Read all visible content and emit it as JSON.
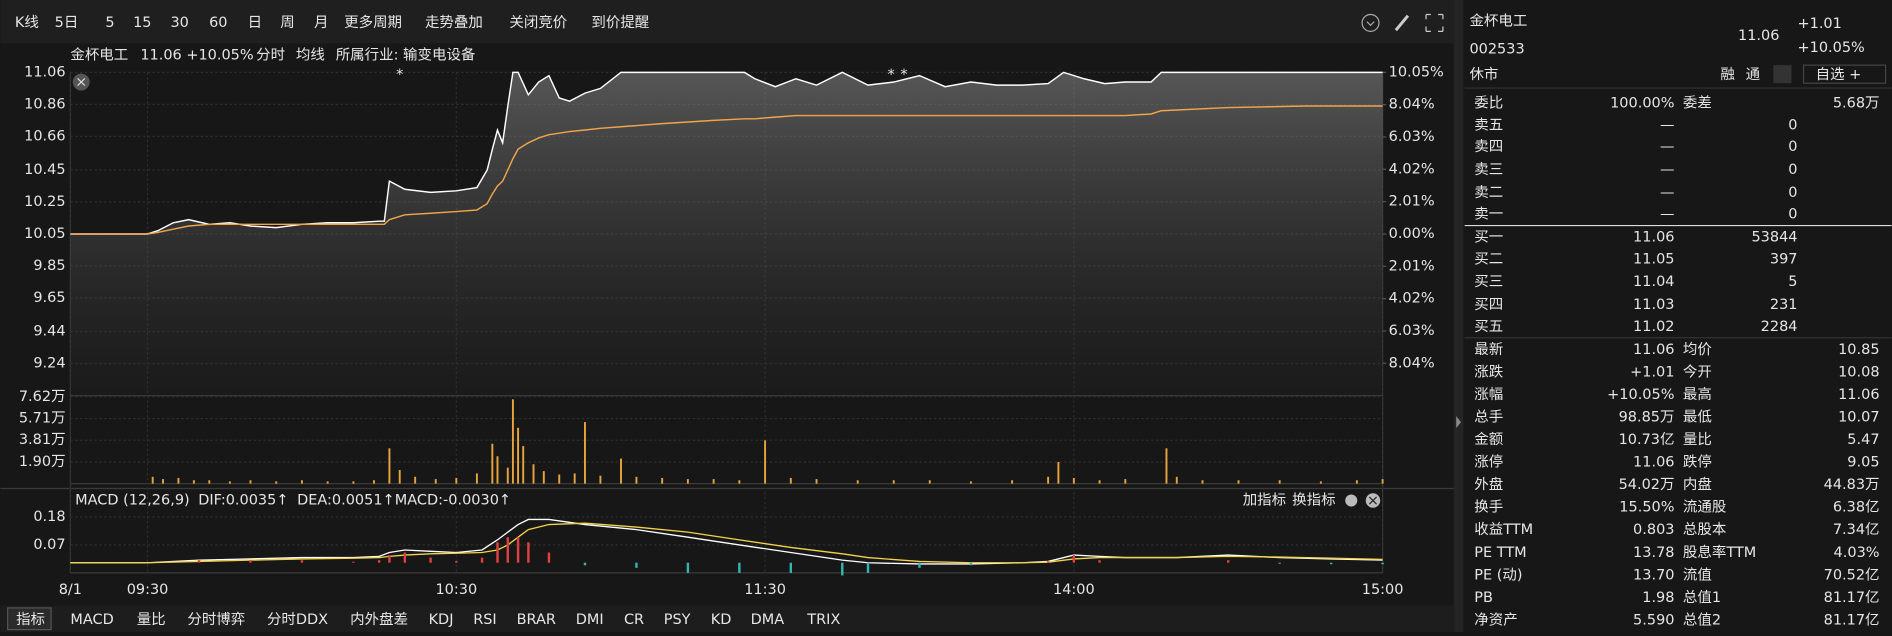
{
  "toolbar": {
    "items": [
      "K线",
      "5日",
      "5",
      "15",
      "30",
      "60",
      "日",
      "周",
      "月",
      "更多周期",
      "走势叠加",
      "关闭竞价",
      "到价提醒"
    ]
  },
  "chart_header": {
    "name": "金杯电工",
    "quote": "11.06 +10.05%",
    "industry": "所属行业: 输变电设备"
  },
  "chart_data": [
    {
      "type": "line",
      "xlim": [
        -15,
        240
      ],
      "xticks": [
        {
          "value": -15,
          "label": "8/1"
        },
        {
          "value": 0,
          "label": "09:30"
        },
        {
          "value": 60,
          "label": "10:30"
        },
        {
          "value": 120,
          "label": "11:30"
        },
        {
          "value": 180,
          "label": "14:00"
        },
        {
          "value": 240,
          "label": "15:00"
        }
      ],
      "ylim": [
        9.04,
        11.06
      ],
      "yticks": [
        11.06,
        10.86,
        10.66,
        10.45,
        10.25,
        10.05,
        9.85,
        9.65,
        9.44,
        9.24
      ],
      "y2lim": [
        -10.05,
        10.05
      ],
      "y2ticks": [
        {
          "value": 10.05,
          "label": "10.05%"
        },
        {
          "value": 8.04,
          "label": "8.04%"
        },
        {
          "value": 6.03,
          "label": "6.03%"
        },
        {
          "value": 4.02,
          "label": "4.02%"
        },
        {
          "value": 2.01,
          "label": "2.01%"
        },
        {
          "value": 0,
          "label": "0.00%"
        },
        {
          "value": -2.01,
          "label": "2.01%"
        },
        {
          "value": -4.02,
          "label": "4.02%"
        },
        {
          "value": -6.03,
          "label": "6.03%"
        },
        {
          "value": -8.04,
          "label": "8.04%"
        }
      ],
      "grid": true,
      "x": [
        -15,
        0,
        2,
        5,
        8,
        12,
        16,
        20,
        25,
        30,
        35,
        40,
        45,
        46,
        47,
        50,
        55,
        60,
        64,
        66,
        67,
        68,
        69,
        70,
        71,
        72,
        74,
        76,
        78,
        80,
        82,
        85,
        88,
        92,
        100,
        110,
        116,
        118,
        122,
        126,
        130,
        135,
        140,
        145,
        150,
        155,
        160,
        165,
        170,
        175,
        178,
        182,
        186,
        190,
        195,
        197,
        210,
        225,
        240
      ],
      "series": [
        {
          "name": "分时",
          "color": "#ffffff",
          "values": [
            10.05,
            10.05,
            10.07,
            10.12,
            10.14,
            10.11,
            10.12,
            10.1,
            10.09,
            10.11,
            10.12,
            10.12,
            10.13,
            10.13,
            10.38,
            10.33,
            10.31,
            10.32,
            10.34,
            10.45,
            10.58,
            10.7,
            10.62,
            10.85,
            11.06,
            11.06,
            10.92,
            11.0,
            11.04,
            10.9,
            10.88,
            10.93,
            10.96,
            11.06,
            11.06,
            11.06,
            11.06,
            11.02,
            10.97,
            11.02,
            10.98,
            11.06,
            10.98,
            11.0,
            11.04,
            10.97,
            11.0,
            10.98,
            10.98,
            10.99,
            11.06,
            11.02,
            10.99,
            11.0,
            11.0,
            11.06,
            11.06,
            11.06,
            11.06
          ]
        },
        {
          "name": "均线",
          "color": "#f0a54a",
          "values": [
            10.05,
            10.05,
            10.06,
            10.08,
            10.1,
            10.11,
            10.11,
            10.11,
            10.11,
            10.11,
            10.11,
            10.11,
            10.11,
            10.11,
            10.14,
            10.17,
            10.18,
            10.19,
            10.2,
            10.24,
            10.3,
            10.35,
            10.38,
            10.45,
            10.52,
            10.58,
            10.62,
            10.65,
            10.67,
            10.68,
            10.69,
            10.7,
            10.71,
            10.72,
            10.74,
            10.76,
            10.77,
            10.77,
            10.78,
            10.79,
            10.79,
            10.79,
            10.79,
            10.79,
            10.79,
            10.79,
            10.79,
            10.79,
            10.79,
            10.79,
            10.79,
            10.79,
            10.79,
            10.79,
            10.8,
            10.82,
            10.84,
            10.85,
            10.85
          ]
        }
      ],
      "annotations": [
        {
          "x": 49,
          "label": "*"
        },
        {
          "x": 144.5,
          "label": "*"
        },
        {
          "x": 147,
          "label": "*"
        }
      ]
    },
    {
      "type": "bar",
      "xlim": [
        -15,
        240
      ],
      "ylim": [
        0,
        7.62
      ],
      "color": "#e8a33d",
      "yticks": [
        {
          "value": 7.62,
          "label": "7.62万"
        },
        {
          "value": 5.71,
          "label": "5.71万"
        },
        {
          "value": 3.81,
          "label": "3.81万"
        },
        {
          "value": 1.9,
          "label": "1.90万"
        }
      ],
      "x": [
        1,
        3,
        6,
        9,
        12,
        16,
        20,
        25,
        30,
        35,
        40,
        44,
        47,
        49,
        52,
        56,
        60,
        64,
        67,
        68,
        70,
        71,
        72,
        73,
        75,
        77,
        80,
        83,
        85,
        88,
        92,
        95,
        100,
        105,
        110,
        115,
        120,
        125,
        130,
        138,
        145,
        152,
        160,
        168,
        175,
        177,
        180,
        185,
        190,
        198,
        200,
        205,
        212,
        220,
        228,
        235,
        240
      ],
      "values": [
        0.6,
        0.4,
        0.5,
        0.3,
        0.3,
        0.2,
        0.3,
        0.2,
        0.3,
        0.2,
        0.2,
        0.3,
        3.1,
        1.2,
        0.6,
        0.4,
        0.5,
        0.9,
        3.5,
        2.4,
        1.4,
        7.4,
        4.9,
        3.3,
        1.7,
        1.1,
        0.8,
        0.9,
        5.4,
        0.7,
        2.2,
        0.6,
        0.5,
        0.4,
        0.4,
        0.3,
        3.8,
        0.5,
        0.4,
        0.3,
        0.3,
        0.3,
        0.2,
        0.3,
        0.6,
        1.9,
        0.5,
        0.3,
        0.4,
        3.1,
        0.6,
        0.3,
        0.3,
        0.3,
        0.2,
        0.3,
        0.4
      ]
    },
    {
      "type": "line",
      "xlim": [
        -15,
        240
      ],
      "ylim": [
        -0.04,
        0.23
      ],
      "yticks": [
        0.18,
        0.07
      ],
      "bar_colors": {
        "up": "#e0403f",
        "down": "#35b5b0"
      },
      "x": [
        -15,
        0,
        10,
        20,
        30,
        40,
        45,
        47,
        50,
        55,
        60,
        65,
        68,
        70,
        72,
        74,
        78,
        85,
        95,
        105,
        115,
        125,
        135,
        140,
        150,
        160,
        170,
        175,
        180,
        185,
        190,
        200,
        210,
        220,
        230,
        240
      ],
      "series": [
        {
          "name": "DIF:0.0035↑",
          "color": "#ffffff",
          "values": [
            0,
            0,
            0.01,
            0.015,
            0.02,
            0.02,
            0.025,
            0.04,
            0.05,
            0.045,
            0.04,
            0.05,
            0.09,
            0.12,
            0.15,
            0.17,
            0.17,
            0.15,
            0.13,
            0.1,
            0.07,
            0.04,
            0.01,
            0.0,
            -0.005,
            -0.005,
            0.0,
            0.005,
            0.03,
            0.025,
            0.02,
            0.02,
            0.03,
            0.02,
            0.015,
            0.01
          ]
        },
        {
          "name": "DEA:0.0051↑",
          "color": "#f3d34a",
          "values": [
            0,
            0,
            0.005,
            0.01,
            0.015,
            0.018,
            0.02,
            0.025,
            0.03,
            0.035,
            0.037,
            0.04,
            0.05,
            0.07,
            0.1,
            0.13,
            0.15,
            0.155,
            0.14,
            0.12,
            0.09,
            0.06,
            0.035,
            0.02,
            0.005,
            0.0,
            0.0,
            0.002,
            0.015,
            0.02,
            0.02,
            0.02,
            0.025,
            0.022,
            0.018,
            0.013
          ]
        },
        {
          "name": "MACD:-0.0030↑",
          "color": "#d65ee0",
          "type": "bar",
          "values": [
            0,
            0,
            0.01,
            0.01,
            0.01,
            0.004,
            0.01,
            0.03,
            0.04,
            0.02,
            0.006,
            0.02,
            0.08,
            0.1,
            0.1,
            0.08,
            0.04,
            -0.01,
            -0.02,
            -0.04,
            -0.04,
            -0.04,
            -0.05,
            -0.04,
            -0.02,
            -0.01,
            0,
            0.006,
            0.03,
            0.01,
            0,
            0,
            0.01,
            -0.004,
            -0.006,
            -0.006
          ]
        }
      ]
    }
  ],
  "indicator_header": {
    "title": "MACD (12,26,9)",
    "add": "加指标",
    "switch": "换指标"
  },
  "tabs": [
    "指标",
    "MACD",
    "量比",
    "分时博弈",
    "分时DDX",
    "内外盘差",
    "KDJ",
    "RSI",
    "BRAR",
    "DMI",
    "CR",
    "PSY",
    "KD",
    "DMA",
    "TRIX"
  ],
  "quote_panel": {
    "name": "金杯电工",
    "code": "002533",
    "status": "休市",
    "price": "11.06",
    "change": "+1.01",
    "change_pct": "+10.05%",
    "buttons": [
      "融",
      "通",
      "自选 +"
    ],
    "ratio": {
      "left": {
        "label": "委比",
        "value": "100.00%"
      },
      "right": {
        "label": "委差",
        "value": "5.68万"
      }
    },
    "asks": [
      {
        "label": "卖五",
        "price": "—",
        "volume": "0"
      },
      {
        "label": "卖四",
        "price": "—",
        "volume": "0"
      },
      {
        "label": "卖三",
        "price": "—",
        "volume": "0"
      },
      {
        "label": "卖二",
        "price": "—",
        "volume": "0"
      },
      {
        "label": "卖一",
        "price": "—",
        "volume": "0"
      }
    ],
    "bids": [
      {
        "label": "买一",
        "price": "11.06",
        "volume": "53844"
      },
      {
        "label": "买二",
        "price": "11.05",
        "volume": "397"
      },
      {
        "label": "买三",
        "price": "11.04",
        "volume": "5"
      },
      {
        "label": "买四",
        "price": "11.03",
        "volume": "231"
      },
      {
        "label": "买五",
        "price": "11.02",
        "volume": "2284"
      }
    ],
    "stats": [
      {
        "left": {
          "label": "最新",
          "value": "11.06",
          "color": "#ff3b3b"
        },
        "right": {
          "label": "均价",
          "value": "10.85",
          "color": "#ff3b3b"
        }
      },
      {
        "left": {
          "label": "涨跌",
          "value": "+1.01",
          "color": "#ff3b3b"
        },
        "right": {
          "label": "今开",
          "value": "10.08",
          "color": "#ff3b3b"
        }
      },
      {
        "left": {
          "label": "涨幅",
          "value": "+10.05%",
          "color": "#ff3b3b"
        },
        "right": {
          "label": "最高",
          "value": "11.06",
          "color": "#ff3b3b"
        }
      },
      {
        "left": {
          "label": "总手",
          "value": "98.85万",
          "color": "#e6e6e6"
        },
        "right": {
          "label": "最低",
          "value": "10.07",
          "color": "#ff3b3b"
        }
      },
      {
        "left": {
          "label": "金额",
          "value": "10.73亿",
          "color": "#35c8d8"
        },
        "right": {
          "label": "量比",
          "value": "5.47",
          "color": "#e6e6e6"
        }
      },
      {
        "left": {
          "label": "涨停",
          "value": "11.06",
          "color": "#ff3b3b"
        },
        "right": {
          "label": "跌停",
          "value": "9.05",
          "color": "#2fd05a"
        }
      },
      {
        "left": {
          "label": "外盘",
          "value": "54.02万",
          "color": "#ff3b3b"
        },
        "right": {
          "label": "内盘",
          "value": "44.83万",
          "color": "#2fd05a"
        }
      },
      {
        "left": {
          "label": "换手",
          "value": "15.50%",
          "color": "#e6e6e6"
        },
        "right": {
          "label": "流通股",
          "value": "6.38亿",
          "color": "#e6e6e6"
        }
      },
      {
        "left": {
          "label": "收益TTM",
          "value": "0.803",
          "color": "#e6e6e6"
        },
        "right": {
          "label": "总股本",
          "value": "7.34亿",
          "color": "#e6e6e6"
        }
      },
      {
        "left": {
          "label": "PE TTM",
          "value": "13.78",
          "color": "#e6e6e6"
        },
        "right": {
          "label": "股息率TTM",
          "value": "4.03%",
          "color": "#e6e6e6"
        }
      },
      {
        "left": {
          "label": "PE (动)",
          "value": "13.70",
          "color": "#e6e6e6"
        },
        "right": {
          "label": "流值",
          "value": "70.52亿",
          "color": "#e6e6e6"
        }
      },
      {
        "left": {
          "label": "PB",
          "value": "1.98",
          "color": "#e6e6e6"
        },
        "right": {
          "label": "总值1",
          "value": "81.17亿",
          "color": "#e6e6e6"
        }
      },
      {
        "left": {
          "label": "净资产",
          "value": "5.590",
          "color": "#e6e6e6"
        },
        "right": {
          "label": "总值2",
          "value": "81.17亿",
          "color": "#e6e6e6"
        }
      }
    ]
  }
}
